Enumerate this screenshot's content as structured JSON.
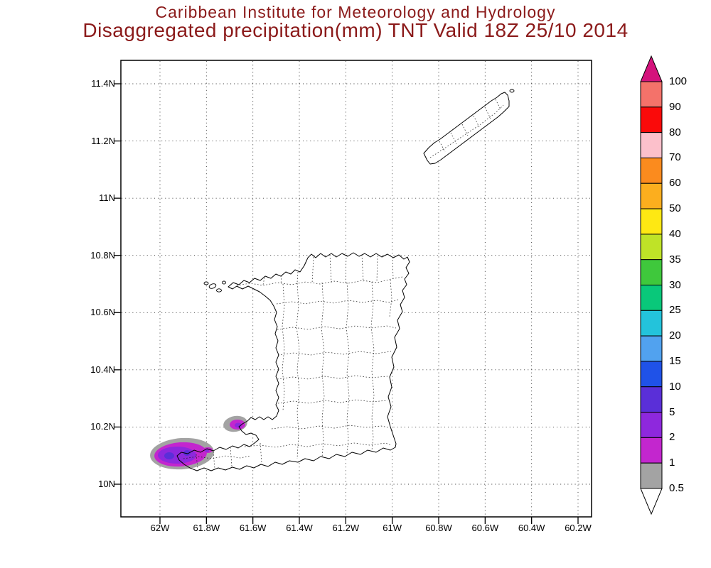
{
  "title": {
    "line1": "Caribbean Institute for Meteorology and Hydrology",
    "line2": "Disaggregated precipitation(mm) TNT Valid 18Z 25/10 2014",
    "color": "#8b1a1a"
  },
  "chart_data": {
    "type": "heatmap",
    "subtype": "filled-contour precipitation map",
    "organization": "Caribbean Institute for Meteorology and Hydrology",
    "title": "Disaggregated precipitation(mm) TNT Valid 18Z 25/10 2014",
    "region": "Trinidad and Tobago (TNT)",
    "valid_time": "18Z 25/10 2014",
    "units": "mm",
    "x_axis": {
      "label": "longitude",
      "ticks": [
        "62W",
        "61.8W",
        "61.6W",
        "61.4W",
        "61.2W",
        "61W",
        "60.8W",
        "60.6W",
        "60.4W",
        "60.2W"
      ]
    },
    "y_axis": {
      "label": "latitude",
      "ticks": [
        "11.4N",
        "11.2N",
        "11N",
        "10.8N",
        "10.6N",
        "10.4N",
        "10.2N",
        "10N"
      ]
    },
    "grid": "dotted lat/lon grid on",
    "legend_position": "right colorbar with arrow caps",
    "colorbar": {
      "boundary_labels": [
        "100",
        "90",
        "80",
        "70",
        "60",
        "50",
        "40",
        "35",
        "30",
        "25",
        "20",
        "15",
        "10",
        "5",
        "2",
        "1",
        "0.5"
      ],
      "boundaries": [
        100,
        90,
        80,
        70,
        60,
        50,
        40,
        35,
        30,
        25,
        20,
        15,
        10,
        5,
        2,
        1,
        0.5
      ],
      "colors_top_to_bottom": [
        "#d4137c",
        "#f4726a",
        "#fa0a0a",
        "#fcc0cb",
        "#fb8b1e",
        "#fcae1e",
        "#fee813",
        "#bfe327",
        "#3fc83c",
        "#09c87a",
        "#23c3db",
        "#51a2ef",
        "#1f52e8",
        "#5a2fd8",
        "#8e28dd",
        "#c326ce",
        "#a3a3a3",
        "#ffffff"
      ],
      "band_ranges_mm_top_to_bottom": [
        ">100",
        "90-100",
        "80-90",
        "70-80",
        "60-70",
        "50-60",
        "40-50",
        "35-40",
        "30-35",
        "25-30",
        "20-25",
        "15-20",
        "10-15",
        "5-10",
        "2-5",
        "1-2",
        "0.5-1",
        "<0.5"
      ]
    },
    "features": [
      {
        "name": "southwest-peninsula-precip-cell",
        "approx_lon": "61.85W to 62.05W",
        "approx_lat": "10.05N to 10.18N",
        "peak_band_mm": "5-10"
      },
      {
        "name": "point-fortin-precip-cell",
        "approx_lon": "61.60W to 61.70W",
        "approx_lat": "10.18N to 10.25N",
        "peak_band_mm": "2-5"
      }
    ]
  }
}
